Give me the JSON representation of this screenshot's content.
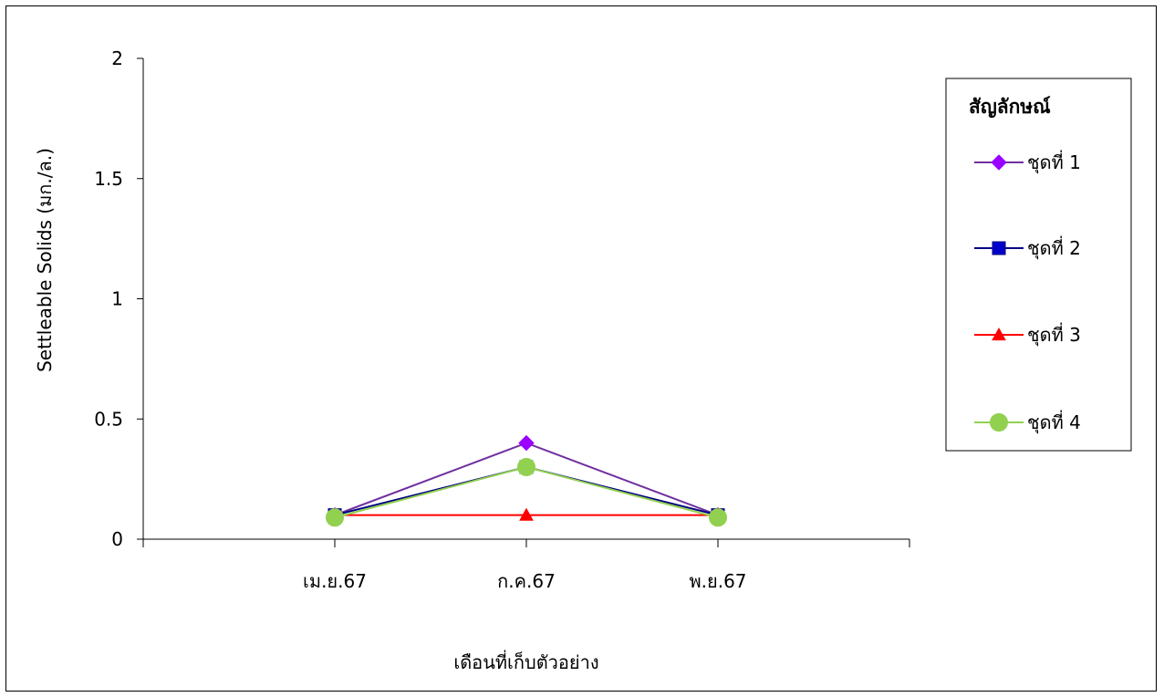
{
  "chart_data": {
    "type": "line",
    "title": "",
    "xlabel": "เดือนที่เก็บตัวอย่าง",
    "ylabel": "Settleable Solids  (มก./ล.)",
    "categories": [
      "เม.ย.67",
      "ก.ค.67",
      "พ.ย.67"
    ],
    "ylim": [
      0,
      2
    ],
    "yticks": [
      "0",
      "0.5",
      "1",
      "1.5",
      "2"
    ],
    "grid": false,
    "legend_position": "right",
    "legend_title": "สัญลักษณ์",
    "series": [
      {
        "name": "ชุดที่ 1",
        "values": [
          0.1,
          0.4,
          0.1
        ],
        "color": "#7030A0",
        "marker": "diamond",
        "marker_color": "#9900FF"
      },
      {
        "name": "ชุดที่ 2",
        "values": [
          0.1,
          0.3,
          0.1
        ],
        "color": "#000080",
        "marker": "square",
        "marker_color": "#0000CC"
      },
      {
        "name": "ชุดที่ 3",
        "values": [
          0.1,
          0.1,
          0.1
        ],
        "color": "#FF0000",
        "marker": "triangle",
        "marker_color": "#FF0000"
      },
      {
        "name": "ชุดที่ 4",
        "values": [
          0.09,
          0.3,
          0.09
        ],
        "color": "#92D050",
        "marker": "circle",
        "marker_color": "#92D050"
      }
    ]
  }
}
